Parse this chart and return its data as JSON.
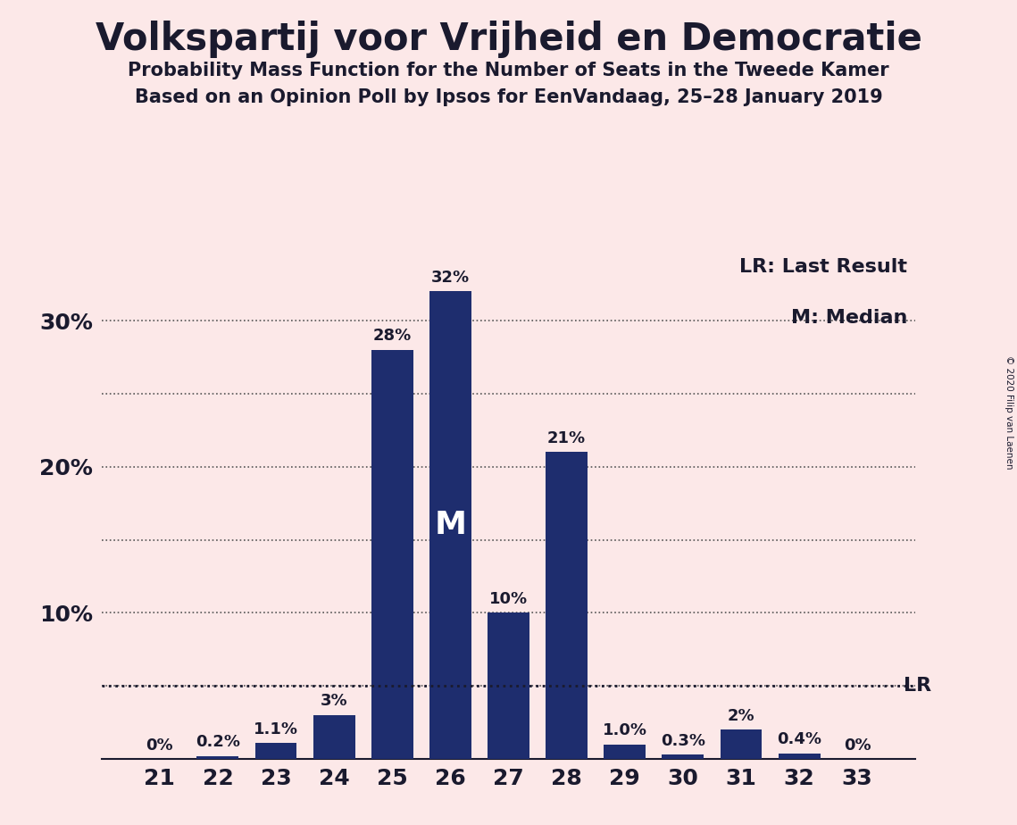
{
  "title": "Volkspartij voor Vrijheid en Democratie",
  "subtitle1": "Probability Mass Function for the Number of Seats in the Tweede Kamer",
  "subtitle2": "Based on an Opinion Poll by Ipsos for EenVandaag, 25–28 January 2019",
  "copyright": "© 2020 Filip van Laenen",
  "categories": [
    21,
    22,
    23,
    24,
    25,
    26,
    27,
    28,
    29,
    30,
    31,
    32,
    33
  ],
  "values": [
    0.0,
    0.2,
    1.1,
    3.0,
    28.0,
    32.0,
    10.0,
    21.0,
    1.0,
    0.3,
    2.0,
    0.4,
    0.0
  ],
  "labels": [
    "0%",
    "0.2%",
    "1.1%",
    "3%",
    "28%",
    "32%",
    "10%",
    "21%",
    "1.0%",
    "0.3%",
    "2%",
    "0.4%",
    "0%"
  ],
  "bar_color": "#1e2d6e",
  "background_color": "#fce8e8",
  "median_bar": 26,
  "median_label": "M",
  "lr_line_value": 5.0,
  "lr_label": "LR",
  "legend_lr": "LR: Last Result",
  "legend_m": "M: Median",
  "ylim": [
    0,
    35
  ],
  "ytick_positions": [
    10,
    20,
    30
  ],
  "grid_values": [
    5,
    10,
    15,
    20,
    25,
    30
  ],
  "title_fontsize": 30,
  "subtitle_fontsize": 15,
  "bar_label_fontsize": 13,
  "axis_tick_fontsize": 18,
  "legend_fontsize": 16,
  "median_fontsize": 26
}
